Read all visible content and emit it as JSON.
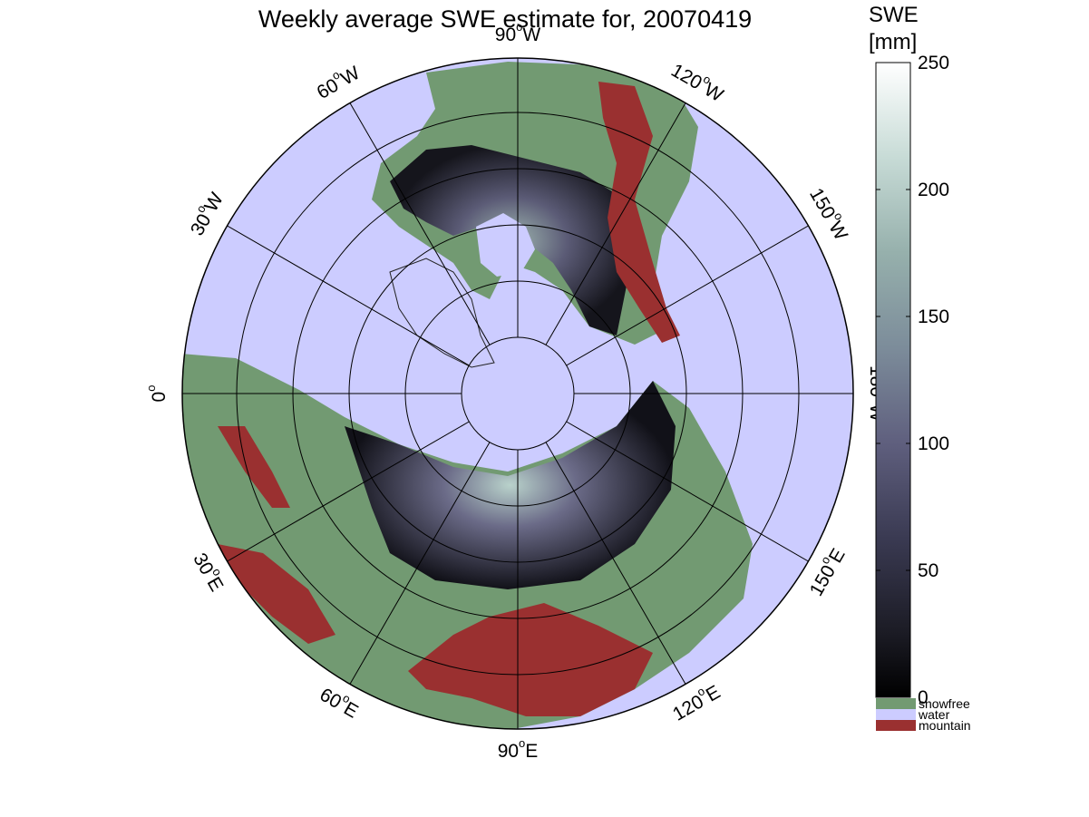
{
  "title": "Weekly average SWE estimate for, 20070419",
  "colors": {
    "water": "#ccccff",
    "snowfree": "#729a72",
    "mountain": "#9a3030",
    "snow_low": "#000000",
    "snow_mid": "#5a5a78",
    "snow_high": "#ffffff"
  },
  "longitude_labels": [
    {
      "deg": "90",
      "sup": "o",
      "dir": "W"
    },
    {
      "deg": "120",
      "sup": "o",
      "dir": "W"
    },
    {
      "deg": "150",
      "sup": "o",
      "dir": "W"
    },
    {
      "deg": "180",
      "sup": "o",
      "dir": "W"
    },
    {
      "deg": "150",
      "sup": "o",
      "dir": "E"
    },
    {
      "deg": "120",
      "sup": "o",
      "dir": "E"
    },
    {
      "deg": "90",
      "sup": "o",
      "dir": "E"
    },
    {
      "deg": "60",
      "sup": "o",
      "dir": "E"
    },
    {
      "deg": "30",
      "sup": "o",
      "dir": "E"
    },
    {
      "deg": "0",
      "sup": "o",
      "dir": ""
    },
    {
      "deg": "30",
      "sup": "o",
      "dir": "W"
    },
    {
      "deg": "60",
      "sup": "o",
      "dir": "W"
    }
  ],
  "colorbar": {
    "label_line1": "SWE",
    "label_line2": "[mm]",
    "min": 0,
    "max": 250,
    "ticks": [
      "0",
      "50",
      "100",
      "150",
      "200",
      "250"
    ]
  },
  "legend": [
    {
      "label": "snowfree",
      "color": "#729a72"
    },
    {
      "label": "water",
      "color": "#ccccff"
    },
    {
      "label": "mountain",
      "color": "#9a3030"
    }
  ]
}
